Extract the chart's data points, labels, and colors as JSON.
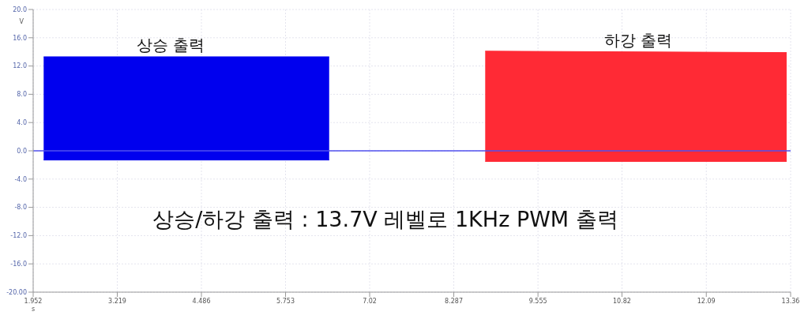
{
  "chart_data": {
    "type": "area",
    "xlabel": "s",
    "ylabel": "V",
    "xlim": [
      1.952,
      13.36
    ],
    "xticks": [
      1.952,
      3.219,
      4.486,
      5.753,
      7.02,
      8.287,
      9.555,
      10.82,
      12.09,
      13.36
    ],
    "ylim": [
      -20,
      20
    ],
    "yticks": [
      {
        "value": -20,
        "label": "-20.00"
      },
      {
        "value": -16,
        "label": "-16.0"
      },
      {
        "value": -12,
        "label": "-12.0"
      },
      {
        "value": -8,
        "label": "-8.0"
      },
      {
        "value": -4,
        "label": "-4.0"
      },
      {
        "value": 0,
        "label": "0.0"
      },
      {
        "value": 4,
        "label": "4.0"
      },
      {
        "value": 8,
        "label": "8.0"
      },
      {
        "value": 12,
        "label": "12.0"
      },
      {
        "value": 16,
        "label": "16.0"
      },
      {
        "value": 20,
        "label": "20.0"
      }
    ],
    "grid": true,
    "series": [
      {
        "color": "#0000ee",
        "x": [
          2.11,
          6.41
        ],
        "values": [
          13.3,
          13.3
        ]
      },
      {
        "color": "#0000ee",
        "x": [
          2.11,
          6.41
        ],
        "values": [
          -1.3,
          -1.3
        ]
      },
      {
        "color": "#ff2a35",
        "x": [
          8.76,
          13.3
        ],
        "values": [
          14.1,
          13.9
        ]
      },
      {
        "color": "#ff2a35",
        "x": [
          8.76,
          13.3
        ],
        "values": [
          -1.5,
          -1.5
        ]
      },
      {
        "type": "line",
        "color": "#5050ee",
        "x": [
          1.952,
          13.36
        ],
        "values": [
          0,
          0
        ]
      }
    ],
    "annotations": [
      "상승 출력",
      "하강 출력",
      "상승/하강 출력 : 13.7V 레벨로 1KHz PWM 출력"
    ]
  }
}
